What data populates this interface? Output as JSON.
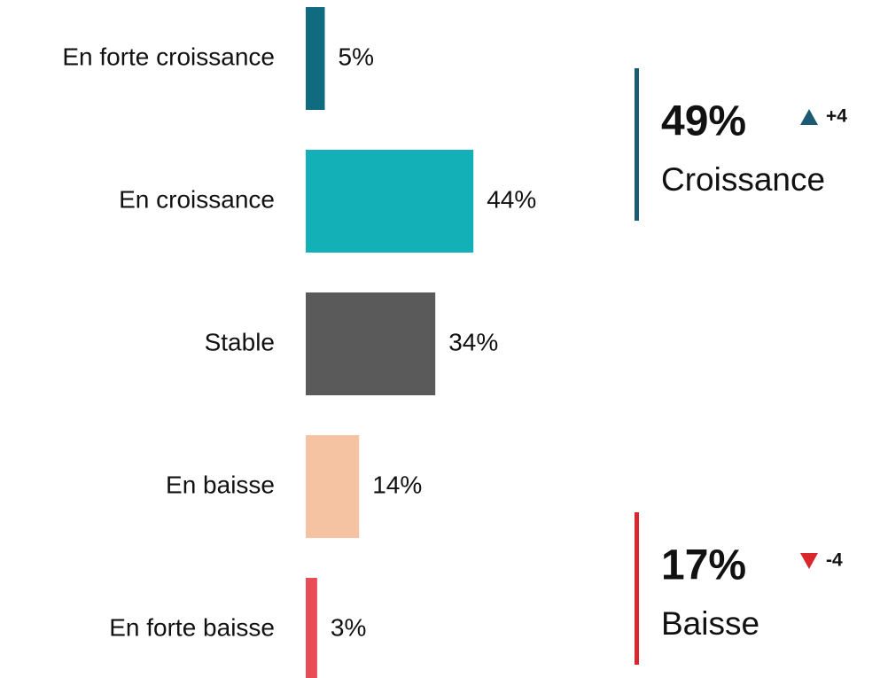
{
  "chart_data": {
    "type": "bar",
    "orientation": "horizontal",
    "categories": [
      "En forte croissance",
      "En croissance",
      "Stable",
      "En baisse",
      "En forte baisse"
    ],
    "values": [
      5,
      44,
      34,
      14,
      3
    ],
    "value_labels": [
      "5%",
      "44%",
      "34%",
      "14%",
      "3%"
    ],
    "colors": [
      "#116b80",
      "#14b0b8",
      "#5a5a5a",
      "#f5c3a2",
      "#e84c57"
    ],
    "annotations": [
      {
        "text": "49%",
        "change": "+4",
        "direction": "up",
        "label": "Croissance",
        "color": "#1b5a72"
      },
      {
        "text": "17%",
        "change": "-4",
        "direction": "down",
        "label": "Baisse",
        "color": "#d9272e"
      }
    ]
  }
}
